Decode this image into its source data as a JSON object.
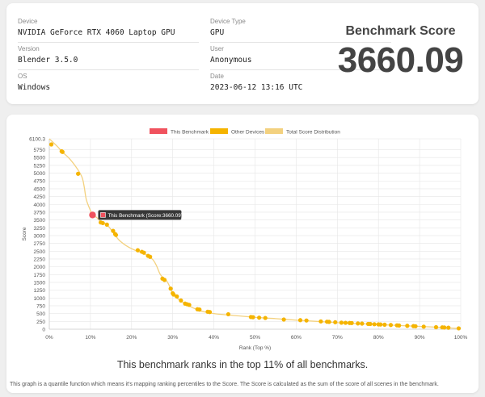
{
  "info": {
    "device_label": "Device",
    "device_value": "NVIDIA GeForce RTX 4060 Laptop GPU",
    "version_label": "Version",
    "version_value": "Blender 3.5.0",
    "os_label": "OS",
    "os_value": "Windows",
    "device_type_label": "Device Type",
    "device_type_value": "GPU",
    "user_label": "User",
    "user_value": "Anonymous",
    "date_label": "Date",
    "date_value": "2023-06-12 13:16 UTC"
  },
  "benchmark": {
    "title": "Benchmark Score",
    "score": "3660.09"
  },
  "colors": {
    "this_benchmark": "#f0525e",
    "other_devices": "#f5b400",
    "distribution": "#f3d17f"
  },
  "chart_data": {
    "type": "scatter",
    "xlabel": "Rank (Top %)",
    "ylabel": "Score",
    "xlim": [
      0,
      100
    ],
    "ylim": [
      0,
      6100.3
    ],
    "x_ticks": [
      "0%",
      "10%",
      "20%",
      "30%",
      "40%",
      "50%",
      "60%",
      "70%",
      "80%",
      "90%",
      "100%"
    ],
    "y_ticks": [
      "0",
      "250",
      "500",
      "750",
      "1000",
      "1250",
      "1500",
      "1750",
      "2000",
      "2250",
      "2500",
      "2750",
      "3000",
      "3250",
      "3500",
      "3750",
      "4000",
      "4250",
      "4500",
      "4750",
      "5000",
      "5250",
      "5500",
      "5750",
      "6100.3"
    ],
    "legend": [
      "This Benchmark",
      "Other Devices",
      "Total Score Distribution"
    ],
    "legend_position": "top",
    "grid": true,
    "tooltip": "This Benchmark (Score:3660.09)",
    "this_benchmark": {
      "x": 10.5,
      "y": 3660.09
    },
    "distribution": [
      [
        0,
        6100
      ],
      [
        2,
        5850
      ],
      [
        3,
        5700
      ],
      [
        5,
        5450
      ],
      [
        7,
        5100
      ],
      [
        8,
        4850
      ],
      [
        8.5,
        4550
      ],
      [
        9,
        4150
      ],
      [
        10,
        3800
      ],
      [
        10.5,
        3660
      ],
      [
        11.5,
        3580
      ],
      [
        12.5,
        3450
      ],
      [
        14,
        3350
      ],
      [
        15.5,
        3100
      ],
      [
        17,
        2850
      ],
      [
        19,
        2650
      ],
      [
        21,
        2520
      ],
      [
        23,
        2420
      ],
      [
        25,
        2250
      ],
      [
        26,
        2050
      ],
      [
        27,
        1750
      ],
      [
        28.5,
        1550
      ],
      [
        29.5,
        1300
      ],
      [
        30,
        1120
      ],
      [
        31,
        1000
      ],
      [
        33,
        820
      ],
      [
        35,
        680
      ],
      [
        37,
        580
      ],
      [
        40,
        500
      ],
      [
        45,
        440
      ],
      [
        50,
        380
      ],
      [
        55,
        340
      ],
      [
        60,
        290
      ],
      [
        65,
        250
      ],
      [
        70,
        210
      ],
      [
        75,
        180
      ],
      [
        80,
        150
      ],
      [
        85,
        120
      ],
      [
        90,
        90
      ],
      [
        95,
        60
      ],
      [
        100,
        20
      ]
    ],
    "other_devices": [
      [
        0.5,
        5920
      ],
      [
        3,
        5700
      ],
      [
        3.2,
        5680
      ],
      [
        7,
        4980
      ],
      [
        12.5,
        3420
      ],
      [
        13,
        3400
      ],
      [
        14,
        3350
      ],
      [
        15.5,
        3150
      ],
      [
        16,
        3050
      ],
      [
        16.2,
        3020
      ],
      [
        21.5,
        2530
      ],
      [
        22.5,
        2480
      ],
      [
        23,
        2450
      ],
      [
        24,
        2350
      ],
      [
        24.5,
        2320
      ],
      [
        27.5,
        1620
      ],
      [
        28,
        1580
      ],
      [
        29.5,
        1300
      ],
      [
        30,
        1150
      ],
      [
        30.2,
        1110
      ],
      [
        31,
        1050
      ],
      [
        32,
        920
      ],
      [
        33,
        820
      ],
      [
        33.5,
        800
      ],
      [
        34,
        780
      ],
      [
        36,
        640
      ],
      [
        36.5,
        630
      ],
      [
        38.5,
        560
      ],
      [
        39,
        550
      ],
      [
        43.5,
        480
      ],
      [
        49,
        390
      ],
      [
        49.5,
        385
      ],
      [
        51,
        370
      ],
      [
        52.5,
        360
      ],
      [
        57,
        310
      ],
      [
        61,
        290
      ],
      [
        62.5,
        280
      ],
      [
        66,
        250
      ],
      [
        67.5,
        240
      ],
      [
        68,
        235
      ],
      [
        69.5,
        225
      ],
      [
        71,
        210
      ],
      [
        72,
        205
      ],
      [
        73,
        200
      ],
      [
        73.5,
        198
      ],
      [
        75,
        185
      ],
      [
        76,
        180
      ],
      [
        77.5,
        170
      ],
      [
        78,
        168
      ],
      [
        79,
        160
      ],
      [
        80,
        155
      ],
      [
        80.5,
        152
      ],
      [
        81.5,
        145
      ],
      [
        83,
        135
      ],
      [
        84.5,
        125
      ],
      [
        85,
        120
      ],
      [
        87,
        110
      ],
      [
        88.5,
        100
      ],
      [
        89,
        95
      ],
      [
        91,
        82
      ],
      [
        94,
        65
      ],
      [
        95.5,
        60
      ],
      [
        96,
        55
      ],
      [
        97,
        48
      ],
      [
        99.5,
        28
      ]
    ]
  },
  "rank_sentence": "This benchmark ranks in the top 11% of all benchmarks.",
  "note": "This graph is a quantile function which means it's mapping ranking percentiles to the Score. The Score is calculated as the sum of the score of all scenes in the benchmark."
}
